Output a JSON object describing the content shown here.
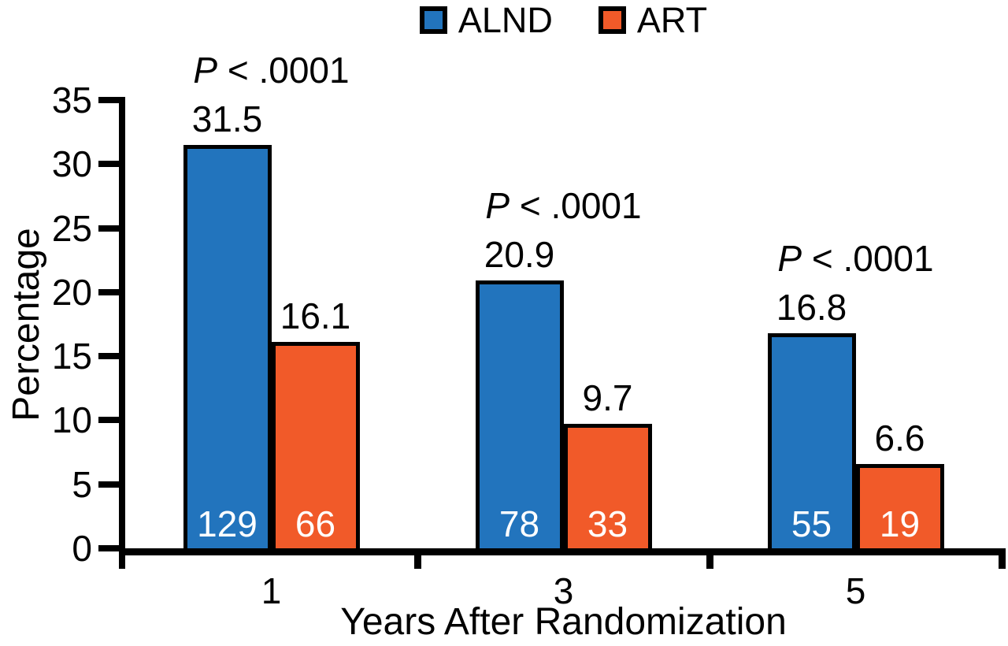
{
  "legend": {
    "items": [
      {
        "label": "ALND",
        "color": "#2274BD"
      },
      {
        "label": "ART",
        "color": "#F15A29"
      }
    ]
  },
  "chart_data": {
    "type": "bar",
    "categories": [
      "1",
      "3",
      "5"
    ],
    "series": [
      {
        "name": "ALND",
        "color": "#2274BD",
        "values": [
          31.5,
          20.9,
          16.8
        ],
        "bar_counts": [
          129,
          78,
          55
        ]
      },
      {
        "name": "ART",
        "color": "#F15A29",
        "values": [
          16.1,
          9.7,
          6.6
        ],
        "bar_counts": [
          66,
          33,
          19
        ]
      }
    ],
    "p_labels": [
      "P < .0001",
      "P < .0001",
      "P < .0001"
    ],
    "xlabel": "Years After Randomization",
    "ylabel": "Percentage",
    "ylim": [
      0,
      35
    ],
    "yticks": [
      0,
      5,
      10,
      15,
      20,
      25,
      30,
      35
    ],
    "legend_position": "top",
    "grid": false
  }
}
